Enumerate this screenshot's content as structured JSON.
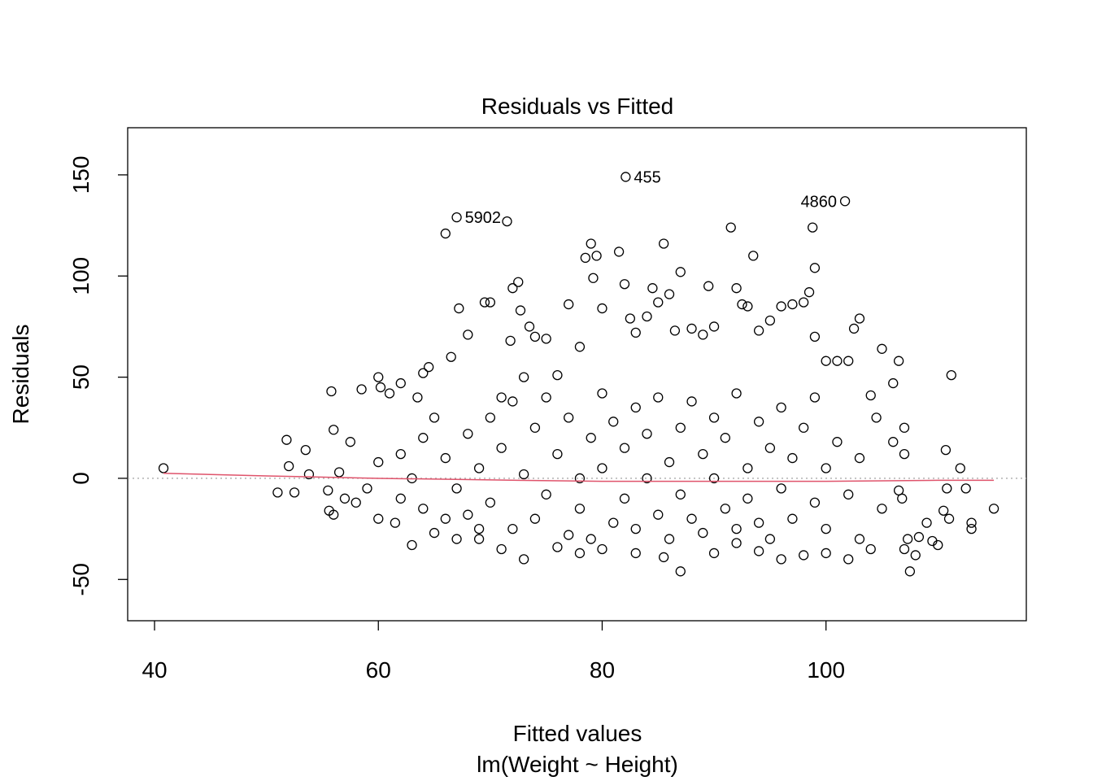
{
  "chart_data": {
    "type": "scatter",
    "title": "Residuals vs Fitted",
    "xlabel": "Fitted values",
    "subtitle": "lm(Weight ~ Height)",
    "ylabel": "Residuals",
    "xlim": [
      37.6,
      117.9
    ],
    "ylim": [
      -70.4,
      173.3
    ],
    "xticks": [
      40,
      60,
      80,
      100
    ],
    "yticks": [
      -50,
      0,
      50,
      100,
      150
    ],
    "series": [
      {
        "color": "#000000",
        "x": [
          40.8,
          51,
          51.8,
          52,
          52.5,
          53.5,
          53.8,
          55.8,
          56,
          55.5,
          55.6,
          56,
          56.5,
          57.5,
          58.5,
          60,
          60.2,
          61,
          62,
          63.5,
          64,
          64.5,
          66,
          66.5,
          67.2,
          68,
          69.5,
          70,
          71.5,
          71.8,
          72,
          72.5,
          72.7,
          73.5,
          73,
          74,
          75,
          76,
          77,
          78,
          79,
          79.5,
          78.5,
          79.2,
          80,
          81.5,
          82,
          82.5,
          83,
          84,
          84.5,
          85,
          85.5,
          86,
          87,
          86.5,
          88,
          89,
          89.5,
          90,
          91.5,
          92,
          92.5,
          93,
          93.5,
          94,
          95,
          96,
          97,
          98,
          98.5,
          98.8,
          99,
          99,
          100,
          101,
          102,
          102.5,
          103,
          104,
          104.5,
          105,
          106,
          106.5,
          106,
          107,
          107,
          106.8,
          107.3,
          108,
          108.3,
          107.5,
          109,
          109.5,
          110,
          110.5,
          111,
          110.8,
          110.7,
          111.2,
          112,
          112.5,
          113,
          113,
          115,
          107,
          106.5,
          105,
          104,
          103,
          102,
          100,
          98,
          96,
          94,
          92,
          90,
          87,
          85.5,
          83,
          80,
          78,
          76,
          73,
          71,
          69,
          67,
          65,
          63,
          61.5,
          60,
          58,
          57,
          59,
          60,
          62,
          62,
          63,
          64,
          64,
          66,
          67,
          68,
          68,
          69,
          70,
          70,
          71,
          72,
          72,
          73,
          74,
          74,
          75,
          75,
          76,
          77,
          77,
          78,
          78,
          79,
          79,
          80,
          80,
          81,
          81,
          82,
          82,
          83,
          83,
          84,
          84,
          85,
          85,
          86,
          86,
          87,
          87,
          88,
          88,
          89,
          89,
          90,
          90,
          91,
          91,
          92,
          92,
          93,
          93,
          94,
          94,
          95,
          95,
          96,
          96,
          97,
          97,
          98,
          99,
          99,
          100,
          100,
          101,
          102,
          103,
          65,
          66,
          69,
          71
        ],
        "values": [
          5,
          -7,
          19,
          6,
          -7,
          14,
          2,
          43,
          24,
          -6,
          -16,
          -18,
          3,
          18,
          44,
          50,
          45,
          42,
          47,
          40,
          52,
          55,
          121,
          60,
          84,
          71,
          87,
          87,
          127,
          68,
          94,
          97,
          83,
          75,
          50,
          70,
          69,
          51,
          86,
          65,
          116,
          110,
          109,
          99,
          84,
          112,
          96,
          79,
          72,
          80,
          94,
          87,
          116,
          91,
          102,
          73,
          74,
          71,
          95,
          75,
          124,
          94,
          86,
          85,
          110,
          73,
          78,
          85,
          86,
          87,
          92,
          124,
          104,
          70,
          58,
          58,
          58,
          74,
          79,
          41,
          30,
          64,
          47,
          58,
          18,
          25,
          12,
          -10,
          -30,
          -38,
          -29,
          -46,
          -22,
          -31,
          -33,
          -16,
          -20,
          -5,
          14,
          51,
          5,
          -5,
          -22,
          -25,
          -15,
          -35,
          -6,
          -15,
          -35,
          -30,
          -40,
          -37,
          -38,
          -40,
          -36,
          -32,
          -37,
          -46,
          -39,
          -37,
          -35,
          -37,
          -34,
          -40,
          -35,
          -30,
          -30,
          -27,
          -33,
          -22,
          -20,
          -12,
          -10,
          -5,
          8,
          12,
          -10,
          0,
          20,
          -15,
          10,
          -5,
          22,
          -18,
          5,
          30,
          -12,
          15,
          -25,
          38,
          2,
          -20,
          25,
          -8,
          40,
          12,
          -28,
          30,
          0,
          -15,
          20,
          -30,
          42,
          5,
          -22,
          28,
          -10,
          15,
          35,
          -25,
          0,
          22,
          -18,
          40,
          8,
          -30,
          25,
          -8,
          -20,
          38,
          12,
          -27,
          30,
          0,
          -15,
          20,
          -25,
          42,
          5,
          -10,
          28,
          -22,
          15,
          -30,
          35,
          -5,
          10,
          -20,
          25,
          -12,
          40,
          5,
          -25,
          18,
          -8,
          10,
          30,
          -20,
          -25,
          40
        ]
      }
    ],
    "smooth": {
      "color": "#DF536B",
      "x": [
        40.8,
        50,
        60,
        70,
        80,
        90,
        100,
        110,
        115
      ],
      "values": [
        2.5,
        1.2,
        0,
        -0.8,
        -1.5,
        -1.5,
        -1.5,
        -1,
        -1
      ]
    },
    "annotations": [
      {
        "text": "455",
        "x": 82.1,
        "y": 149
      },
      {
        "text": "4860",
        "x": 101.7,
        "y": 137
      },
      {
        "text": "5902",
        "x": 67.0,
        "y": 129
      }
    ]
  }
}
